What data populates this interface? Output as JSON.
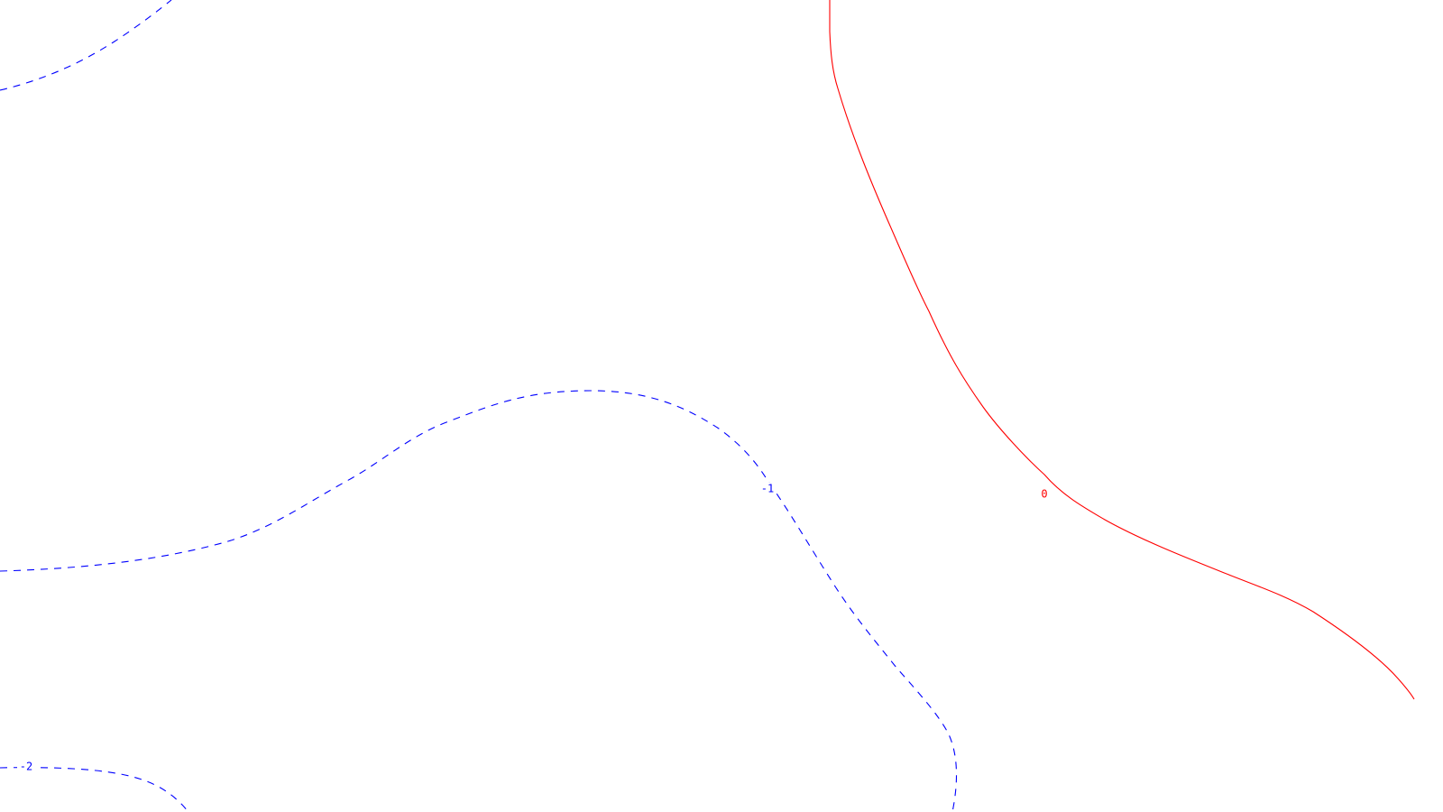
{
  "chart_data": {
    "type": "contour",
    "grid": false,
    "colors": {
      "background": "#ffffff",
      "positive": "#ff0000",
      "negative": "#0000ff"
    },
    "contours": [
      {
        "level": 0,
        "label": "0",
        "color": "#ff0000",
        "dashed": false
      },
      {
        "level": -1,
        "label": "-1",
        "color": "#0000ff",
        "dashed": true
      },
      {
        "level": -2,
        "label": "-2",
        "color": "#0000ff",
        "dashed": true
      },
      {
        "level": -1,
        "label": "",
        "color": "#0000ff",
        "dashed": true
      }
    ]
  }
}
